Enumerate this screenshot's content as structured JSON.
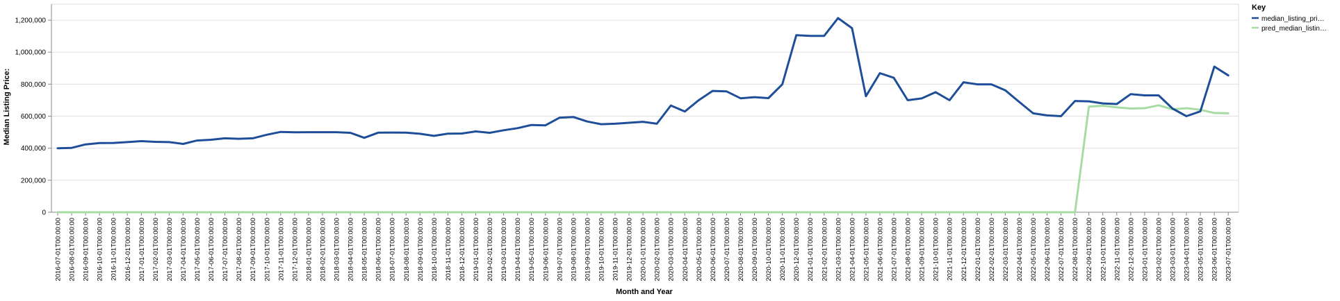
{
  "chart_data": {
    "type": "line",
    "title": "",
    "xlabel": "Month and Year",
    "ylabel": "Median Listing Price:",
    "ylim": [
      0,
      1300000
    ],
    "yticks": [
      0,
      200000,
      400000,
      600000,
      800000,
      1000000,
      1200000
    ],
    "ytick_labels": [
      "0",
      "200,000",
      "400,000",
      "600,000",
      "800,000",
      "1,000,000",
      "1,200,000"
    ],
    "grid": true,
    "legend_position": "right",
    "legend_title": "Key",
    "x": [
      "2016-07-01T00:00:00",
      "2016-08-01T00:00:00",
      "2016-09-01T00:00:00",
      "2016-10-01T00:00:00",
      "2016-11-01T00:00:00",
      "2016-12-01T00:00:00",
      "2017-01-01T00:00:00",
      "2017-02-01T00:00:00",
      "2017-03-01T00:00:00",
      "2017-04-01T00:00:00",
      "2017-05-01T00:00:00",
      "2017-06-01T00:00:00",
      "2017-07-01T00:00:00",
      "2017-08-01T00:00:00",
      "2017-09-01T00:00:00",
      "2017-10-01T00:00:00",
      "2017-11-01T00:00:00",
      "2017-12-01T00:00:00",
      "2018-01-01T00:00:00",
      "2018-02-01T00:00:00",
      "2018-03-01T00:00:00",
      "2018-04-01T00:00:00",
      "2018-05-01T00:00:00",
      "2018-06-01T00:00:00",
      "2018-07-01T00:00:00",
      "2018-08-01T00:00:00",
      "2018-09-01T00:00:00",
      "2018-10-01T00:00:00",
      "2018-11-01T00:00:00",
      "2018-12-01T00:00:00",
      "2019-01-01T00:00:00",
      "2019-02-01T00:00:00",
      "2019-03-01T00:00:00",
      "2019-04-01T00:00:00",
      "2019-05-01T00:00:00",
      "2019-06-01T00:00:00",
      "2019-07-01T00:00:00",
      "2019-08-01T00:00:00",
      "2019-09-01T00:00:00",
      "2019-10-01T00:00:00",
      "2019-11-01T00:00:00",
      "2019-12-01T00:00:00",
      "2020-01-01T00:00:00",
      "2020-02-01T00:00:00",
      "2020-03-01T00:00:00",
      "2020-04-01T00:00:00",
      "2020-05-01T00:00:00",
      "2020-06-01T00:00:00",
      "2020-07-01T00:00:00",
      "2020-08-01T00:00:00",
      "2020-09-01T00:00:00",
      "2020-10-01T00:00:00",
      "2020-11-01T00:00:00",
      "2020-12-01T00:00:00",
      "2021-01-01T00:00:00",
      "2021-02-01T00:00:00",
      "2021-03-01T00:00:00",
      "2021-04-01T00:00:00",
      "2021-05-01T00:00:00",
      "2021-06-01T00:00:00",
      "2021-07-01T00:00:00",
      "2021-08-01T00:00:00",
      "2021-09-01T00:00:00",
      "2021-10-01T00:00:00",
      "2021-11-01T00:00:00",
      "2021-12-01T00:00:00",
      "2022-01-01T00:00:00",
      "2022-02-01T00:00:00",
      "2022-03-01T00:00:00",
      "2022-04-01T00:00:00",
      "2022-05-01T00:00:00",
      "2022-06-01T00:00:00",
      "2022-07-01T00:00:00",
      "2022-08-01T00:00:00",
      "2022-09-01T00:00:00",
      "2022-10-01T00:00:00",
      "2022-11-01T00:00:00",
      "2022-12-01T00:00:00",
      "2023-01-01T00:00:00",
      "2023-02-01T00:00:00",
      "2023-03-01T00:00:00",
      "2023-04-01T00:00:00",
      "2023-05-01T00:00:00",
      "2023-06-01T00:00:00",
      "2023-07-01T00:00:00"
    ],
    "series": [
      {
        "name": "median_listing_pri…",
        "color": "#1f4e99",
        "values": [
          400000,
          402000,
          424000,
          432000,
          433000,
          438000,
          444000,
          440000,
          438000,
          427000,
          448000,
          453000,
          462000,
          459000,
          462000,
          484000,
          502000,
          499000,
          500000,
          500000,
          500000,
          496000,
          465000,
          497000,
          498000,
          497000,
          490000,
          477000,
          491000,
          492000,
          505000,
          496000,
          512000,
          525000,
          545000,
          543000,
          590000,
          595000,
          567000,
          550000,
          553000,
          559000,
          565000,
          553000,
          667000,
          629000,
          700000,
          758000,
          755000,
          712000,
          719000,
          713000,
          799000,
          1106000,
          1102000,
          1102000,
          1213000,
          1150000,
          725000,
          869000,
          840000,
          700000,
          711000,
          750000,
          700000,
          812000,
          799000,
          799000,
          762000,
          689000,
          618000,
          605000,
          600000,
          695000,
          693000,
          680000,
          676000,
          738000,
          730000,
          730000,
          648000,
          600000,
          630000,
          910000,
          855000
        ]
      },
      {
        "name": "pred_median_listin…",
        "color": "#a6dca2",
        "values": [
          0,
          0,
          0,
          0,
          0,
          0,
          0,
          0,
          0,
          0,
          0,
          0,
          0,
          0,
          0,
          0,
          0,
          0,
          0,
          0,
          0,
          0,
          0,
          0,
          0,
          0,
          0,
          0,
          0,
          0,
          0,
          0,
          0,
          0,
          0,
          0,
          0,
          0,
          0,
          0,
          0,
          0,
          0,
          0,
          0,
          0,
          0,
          0,
          0,
          0,
          0,
          0,
          0,
          0,
          0,
          0,
          0,
          0,
          0,
          0,
          0,
          0,
          0,
          0,
          0,
          0,
          0,
          0,
          0,
          0,
          0,
          0,
          0,
          0,
          660000,
          665000,
          655000,
          648000,
          650000,
          668000,
          643000,
          650000,
          640000,
          620000,
          618000
        ]
      }
    ]
  }
}
